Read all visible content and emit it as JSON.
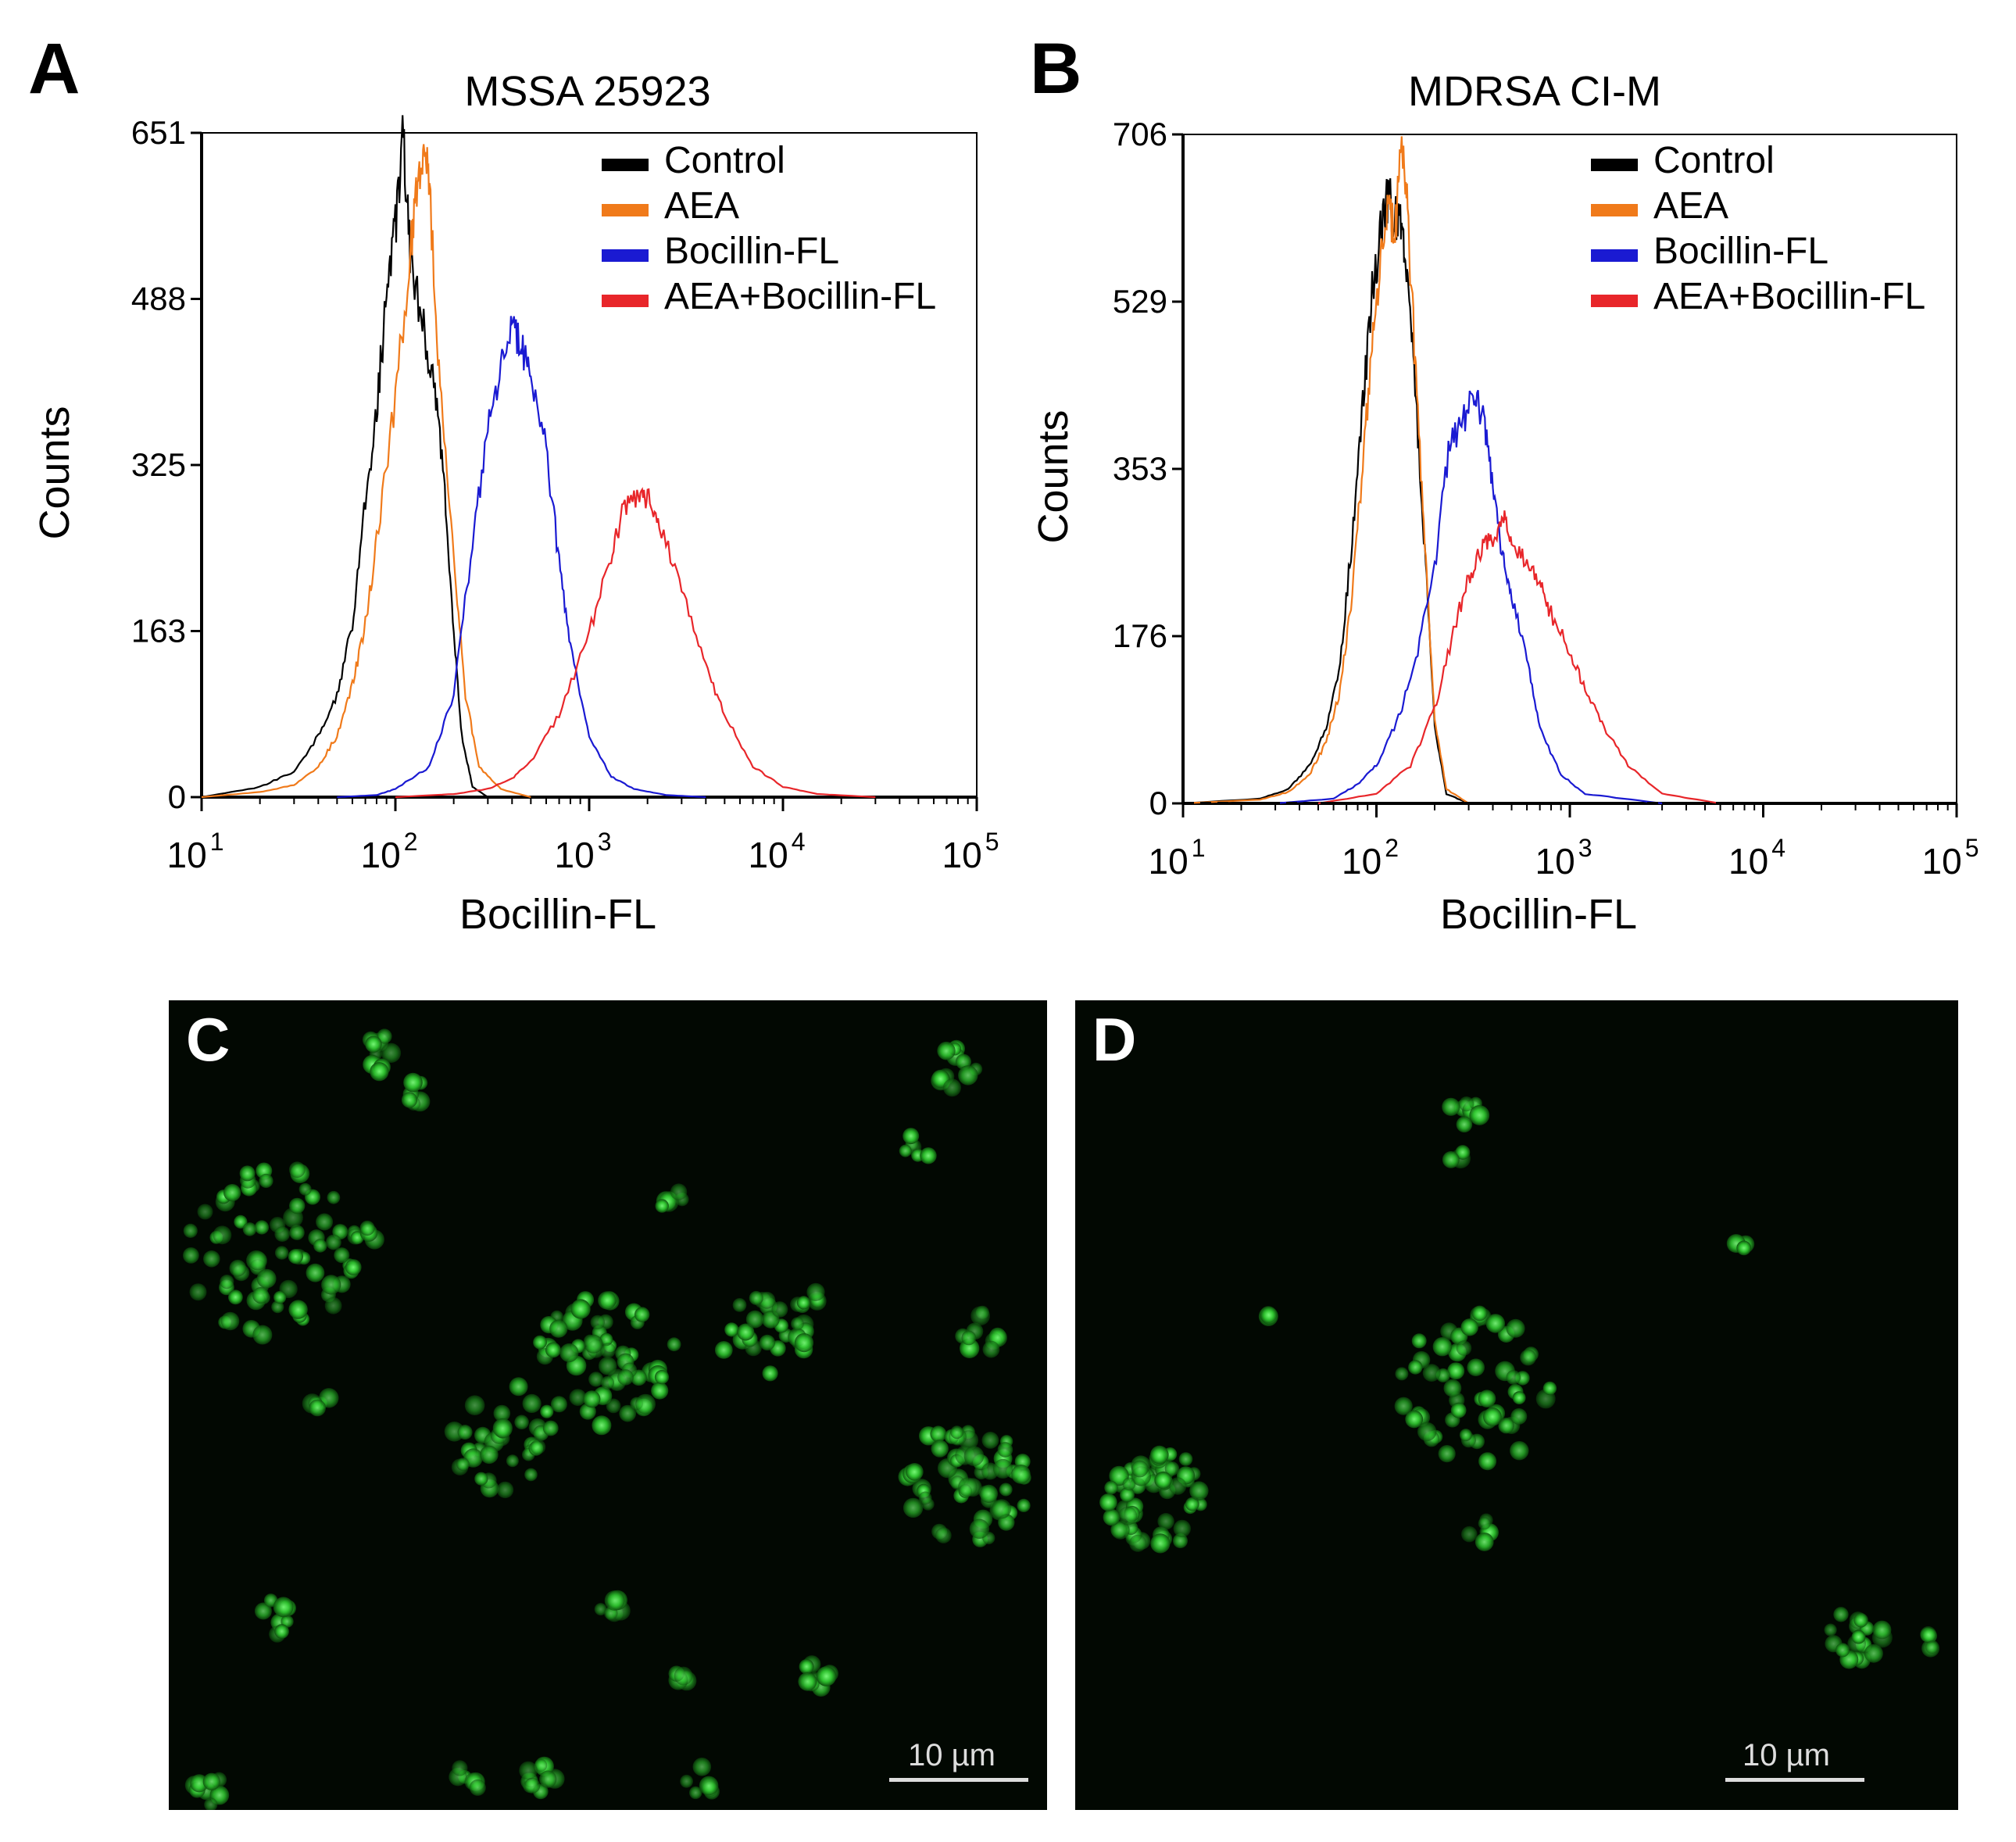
{
  "panels": {
    "a": {
      "letter": "A"
    },
    "b": {
      "letter": "B"
    },
    "c": {
      "letter": "C",
      "scale_label": "10 µm"
    },
    "d": {
      "letter": "D",
      "scale_label": "10 µm"
    }
  },
  "colors": {
    "Control": "#000000",
    "AEA": "#f07a1a",
    "Bocillin-FL": "#1a1ad2",
    "AEA+Bocillin-FL": "#e8262a",
    "cells": "#3ce63c"
  },
  "chart_data": [
    {
      "id": "A",
      "type": "line",
      "title": "MSSA 25923",
      "xlabel": "Bocillin-FL",
      "ylabel": "Counts",
      "xscale": "log",
      "xlim": [
        10,
        100000
      ],
      "ylim": [
        0,
        651
      ],
      "yticks": [
        "0",
        "163",
        "325",
        "488",
        "651"
      ],
      "xticks": [
        {
          "base": "10",
          "exp": "1"
        },
        {
          "base": "10",
          "exp": "2"
        },
        {
          "base": "10",
          "exp": "3"
        },
        {
          "base": "10",
          "exp": "4"
        },
        {
          "base": "10",
          "exp": "5"
        }
      ],
      "legend_position": "top-right",
      "series": [
        {
          "name": "Control",
          "color": "#000000",
          "x": [
            10,
            20,
            30,
            40,
            50,
            60,
            70,
            80,
            90,
            100,
            110,
            120,
            140,
            160,
            180,
            200,
            220,
            250,
            300
          ],
          "y": [
            0,
            10,
            25,
            60,
            100,
            170,
            290,
            380,
            490,
            560,
            650,
            520,
            460,
            400,
            300,
            160,
            60,
            10,
            0
          ]
        },
        {
          "name": "AEA",
          "color": "#f07a1a",
          "x": [
            10,
            20,
            30,
            40,
            50,
            60,
            70,
            80,
            100,
            120,
            130,
            140,
            150,
            170,
            200,
            230,
            270,
            350,
            500
          ],
          "y": [
            0,
            5,
            12,
            30,
            60,
            110,
            170,
            250,
            390,
            540,
            600,
            640,
            590,
            400,
            230,
            100,
            30,
            8,
            0
          ]
        },
        {
          "name": "Bocillin-FL",
          "color": "#1a1ad2",
          "x": [
            50,
            80,
            100,
            150,
            200,
            250,
            300,
            350,
            400,
            450,
            500,
            600,
            700,
            800,
            1000,
            1300,
            1700,
            2500,
            4000
          ],
          "y": [
            0,
            2,
            8,
            30,
            100,
            250,
            360,
            420,
            455,
            440,
            410,
            340,
            230,
            150,
            60,
            20,
            8,
            2,
            0
          ]
        },
        {
          "name": "AEA+Bocillin-FL",
          "color": "#e8262a",
          "x": [
            100,
            200,
            300,
            400,
            500,
            700,
            1000,
            1300,
            1500,
            1800,
            2000,
            2300,
            3000,
            4000,
            5000,
            7000,
            10000,
            15000,
            30000
          ],
          "y": [
            0,
            3,
            8,
            18,
            35,
            80,
            160,
            240,
            280,
            300,
            295,
            270,
            200,
            130,
            80,
            30,
            10,
            3,
            0
          ]
        }
      ]
    },
    {
      "id": "B",
      "type": "line",
      "title": "MDRSA CI-M",
      "xlabel": "Bocillin-FL",
      "ylabel": "Counts",
      "xscale": "log",
      "xlim": [
        10,
        100000
      ],
      "ylim": [
        0,
        706
      ],
      "yticks": [
        "0",
        "176",
        "353",
        "529",
        "706"
      ],
      "xticks": [
        {
          "base": "10",
          "exp": "1"
        },
        {
          "base": "10",
          "exp": "2"
        },
        {
          "base": "10",
          "exp": "3"
        },
        {
          "base": "10",
          "exp": "4"
        },
        {
          "base": "10",
          "exp": "5"
        }
      ],
      "legend_position": "top-right",
      "series": [
        {
          "name": "Control",
          "color": "#000000",
          "x": [
            10,
            25,
            35,
            45,
            55,
            65,
            75,
            85,
            95,
            105,
            115,
            125,
            135,
            145,
            160,
            180,
            200,
            230,
            300
          ],
          "y": [
            0,
            5,
            15,
            40,
            80,
            150,
            280,
            420,
            540,
            600,
            640,
            620,
            610,
            560,
            420,
            250,
            80,
            10,
            0
          ]
        },
        {
          "name": "AEA",
          "color": "#f07a1a",
          "x": [
            10,
            25,
            35,
            45,
            55,
            65,
            75,
            85,
            95,
            105,
            115,
            125,
            135,
            145,
            160,
            180,
            200,
            230,
            300
          ],
          "y": [
            0,
            4,
            12,
            30,
            65,
            120,
            220,
            360,
            480,
            570,
            620,
            600,
            700,
            620,
            450,
            260,
            90,
            15,
            0
          ]
        },
        {
          "name": "Bocillin-FL",
          "color": "#1a1ad2",
          "x": [
            30,
            60,
            80,
            100,
            130,
            160,
            200,
            240,
            280,
            320,
            360,
            400,
            450,
            500,
            600,
            700,
            900,
            1200,
            3000
          ],
          "y": [
            0,
            5,
            20,
            40,
            90,
            150,
            250,
            380,
            400,
            440,
            400,
            340,
            260,
            220,
            150,
            80,
            30,
            10,
            0
          ]
        },
        {
          "name": "AEA+Bocillin-FL",
          "color": "#e8262a",
          "x": [
            50,
            100,
            150,
            200,
            250,
            300,
            350,
            400,
            450,
            500,
            600,
            700,
            800,
            1000,
            1200,
            1500,
            2000,
            3000,
            6000
          ],
          "y": [
            0,
            10,
            40,
            100,
            180,
            240,
            270,
            280,
            300,
            280,
            250,
            230,
            200,
            160,
            120,
            80,
            40,
            10,
            0
          ]
        },
        {
          "name": "",
          "color": "#000000",
          "style": "dashed",
          "x": [
            10,
            100000
          ],
          "y": [
            0,
            0
          ]
        }
      ]
    }
  ]
}
